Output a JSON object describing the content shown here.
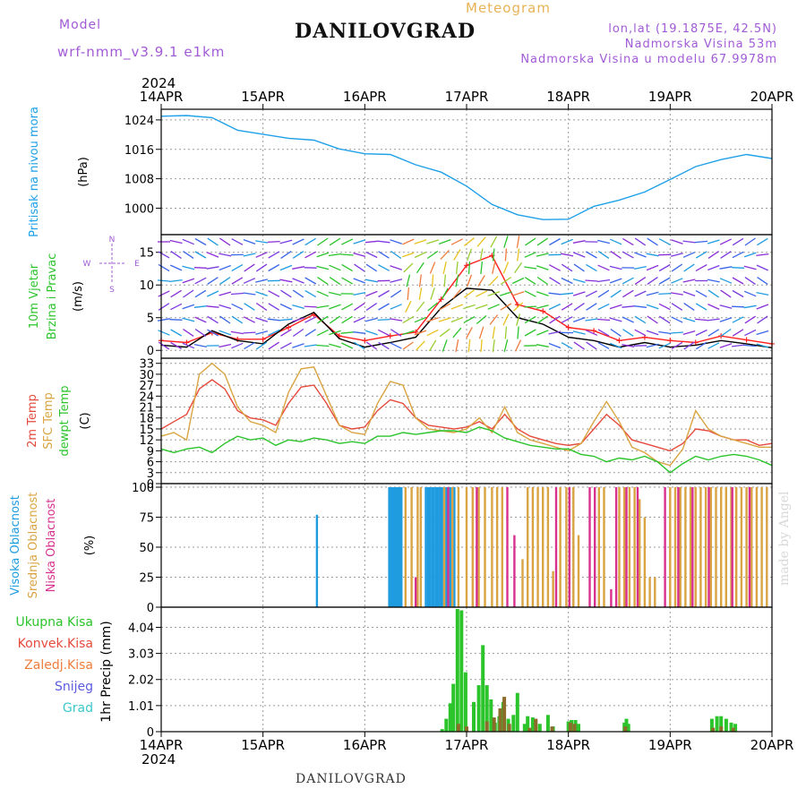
{
  "header": {
    "model_label": "Model",
    "model_name": "wrf-nmm_v3.9.1 e1km",
    "meteogram_label": "Meteogram",
    "station": "DANILOVGRAD",
    "lonlat": "lon,lat (19.1875E, 42.5N)",
    "elevation": "Nadmorska Visina 53m",
    "model_elevation": "Nadmorska Visina u modelu 67.9978m"
  },
  "footer": {
    "station": "DANILOVGRAD",
    "credit": "made by Angel"
  },
  "chart_data": [
    {
      "type": "line",
      "panel": "pressure",
      "ylabel_colored": "Pritisak na nivou mora",
      "ylabel_unit": "(hPa)",
      "yticks": [
        1000,
        1008,
        1016,
        1024
      ],
      "ylim": [
        992.8,
        1026.9
      ],
      "x_top_year": "2024",
      "x_bottom_year": "2024",
      "xticks": [
        "14APR",
        "15APR",
        "16APR",
        "17APR",
        "18APR",
        "19APR",
        "20APR"
      ],
      "x": [
        0,
        0.25,
        0.5,
        0.75,
        1,
        1.25,
        1.5,
        1.75,
        2,
        2.25,
        2.5,
        2.75,
        3,
        3.25,
        3.5,
        3.75,
        4,
        4.25,
        4.5,
        4.75,
        5,
        5.25,
        5.5,
        5.75,
        6
      ],
      "series": [
        {
          "color": "#1fa0e8",
          "values": [
            1025,
            1025.2,
            1024.6,
            1021.2,
            1020.1,
            1019.0,
            1018.5,
            1016.1,
            1014.8,
            1014.6,
            1011.8,
            1009.8,
            1006.0,
            1001.0,
            998.2,
            996.9,
            997.0,
            1000.5,
            1002.2,
            1004.4,
            1007.8,
            1011.3,
            1013.2,
            1014.6,
            1013.5
          ]
        }
      ]
    },
    {
      "type": "line",
      "panel": "wind",
      "ylabel_colored": "10m Vjetar",
      "ylabel_colored2": "Brzina i Pravac",
      "ylabel_unit": "(m/s)",
      "compass": "N, S, W, E",
      "yticks": [
        0,
        5,
        10,
        15
      ],
      "ylim": [
        -1.2,
        17.7
      ],
      "x": [
        0,
        0.25,
        0.5,
        0.75,
        1,
        1.25,
        1.5,
        1.75,
        2,
        2.25,
        2.5,
        2.75,
        3,
        3.25,
        3.5,
        3.75,
        4,
        4.25,
        4.5,
        4.75,
        5,
        5.25,
        5.5,
        5.75,
        6
      ],
      "series": [
        {
          "color": "#ff2020",
          "values": [
            1.5,
            1.2,
            2.7,
            1.7,
            1.7,
            3.5,
            5.5,
            2.2,
            1.5,
            2.2,
            2.8,
            7.8,
            13.0,
            14.5,
            7.0,
            6.0,
            3.5,
            3.0,
            1.5,
            2.0,
            1.5,
            1.2,
            2.2,
            1.6,
            1.0
          ]
        },
        {
          "color": "#000000",
          "values": [
            0.8,
            0.5,
            3.0,
            1.5,
            1.0,
            4.0,
            5.8,
            1.8,
            0.5,
            1.2,
            2.0,
            6.5,
            9.5,
            9.2,
            5.0,
            4.0,
            2.0,
            1.5,
            0.5,
            1.2,
            0.5,
            0.8,
            1.5,
            1.0,
            0.4
          ]
        }
      ]
    },
    {
      "type": "line",
      "panel": "temperature",
      "ylabel_colored": [
        "2m Temp",
        "SFC Temp",
        "dewpt Temp"
      ],
      "ylabel_unit": "(C)",
      "yticks": [
        0,
        3,
        6,
        9,
        12,
        15,
        18,
        21,
        24,
        27,
        30,
        33
      ],
      "ylim": [
        0,
        34.4
      ],
      "x": [
        0,
        0.125,
        0.25,
        0.375,
        0.5,
        0.625,
        0.75,
        0.875,
        1,
        1.125,
        1.25,
        1.375,
        1.5,
        1.625,
        1.75,
        1.875,
        2,
        2.125,
        2.25,
        2.375,
        2.5,
        2.625,
        2.75,
        2.875,
        3,
        3.125,
        3.25,
        3.375,
        3.5,
        3.625,
        3.75,
        3.875,
        4,
        4.125,
        4.25,
        4.375,
        4.5,
        4.625,
        4.75,
        4.875,
        5,
        5.125,
        5.25,
        5.375,
        5.5,
        5.625,
        5.75,
        5.875,
        6
      ],
      "series": [
        {
          "name": "2m Temp",
          "color": "#e54a3c",
          "values": [
            15,
            17,
            19,
            26,
            28.5,
            26,
            20,
            18,
            17.5,
            16,
            22,
            26.5,
            27,
            22,
            16,
            15,
            15.5,
            20,
            23,
            22,
            18,
            16,
            15.5,
            15,
            15.5,
            17,
            15,
            19,
            15,
            13,
            12,
            11,
            10.5,
            11,
            15,
            19,
            16,
            12,
            11,
            10,
            9,
            11,
            15,
            14.5,
            13,
            12,
            12,
            10.5,
            11
          ]
        },
        {
          "name": "SFC Temp",
          "color": "#d9a441",
          "values": [
            13,
            14,
            12,
            30,
            33,
            30,
            21,
            17,
            16,
            14,
            25,
            31.5,
            32,
            24,
            16,
            14,
            13.5,
            22,
            28,
            27,
            18,
            15,
            14.5,
            14,
            15,
            18,
            14,
            21,
            14,
            12,
            11,
            10,
            9,
            11,
            17,
            22.5,
            17,
            10,
            8.5,
            6,
            5,
            9.5,
            20,
            15,
            13,
            12,
            11,
            10,
            10
          ]
        },
        {
          "name": "dewpt Temp",
          "color": "#2bc42b",
          "values": [
            9.5,
            8.5,
            9.5,
            10,
            8.5,
            11,
            13,
            12,
            12.5,
            10.5,
            12,
            11.5,
            12.5,
            12,
            11,
            11.5,
            11,
            13,
            13,
            14,
            13.5,
            14,
            14.5,
            14.5,
            14,
            15.5,
            14.5,
            12.5,
            11.5,
            10.5,
            10,
            9.5,
            9.5,
            8,
            7.5,
            6,
            7,
            6.5,
            7.5,
            6,
            3,
            5.5,
            7.5,
            6.5,
            7.5,
            8,
            7.5,
            6.5,
            5
          ]
        }
      ]
    },
    {
      "type": "bar",
      "panel": "cloud",
      "ylabel_colored": [
        "Visoka Oblacnost",
        "Srednja Oblacnost",
        "Niska Oblacnost"
      ],
      "ylabel_unit": "(%)",
      "yticks": [
        0,
        25,
        50,
        75,
        100
      ],
      "ylim": [
        0,
        103
      ],
      "series": [
        {
          "name": "Visoka Oblacnost",
          "color": "#1f9ce0",
          "x": [
            1.53,
            2.24,
            2.25,
            2.26,
            2.28,
            2.29,
            2.3,
            2.32,
            2.33,
            2.35,
            2.36,
            2.6,
            2.62,
            2.64,
            2.66,
            2.68,
            2.7,
            2.72,
            2.74,
            2.76,
            2.8,
            2.84,
            2.88
          ],
          "values": [
            77,
            100,
            100,
            100,
            100,
            100,
            100,
            100,
            100,
            100,
            100,
            100,
            100,
            100,
            100,
            100,
            100,
            100,
            100,
            100,
            100,
            100,
            100
          ]
        },
        {
          "name": "Srednja Oblacnost",
          "color": "#d9a441",
          "x": [
            2.4,
            2.46,
            2.52,
            2.55,
            2.78,
            2.86,
            2.92,
            3.0,
            3.06,
            3.12,
            3.18,
            3.25,
            3.3,
            3.35,
            3.55,
            3.6,
            3.65,
            3.7,
            3.75,
            3.8,
            3.85,
            3.92,
            3.98,
            4.05,
            4.1,
            4.3,
            4.35,
            4.5,
            4.55,
            4.6,
            4.65,
            4.7,
            4.75,
            4.8,
            4.85,
            5.0,
            5.05,
            5.1,
            5.15,
            5.2,
            5.25,
            5.3,
            5.35,
            5.4,
            5.45,
            5.5,
            5.55,
            5.6,
            5.65,
            5.7,
            5.75,
            5.8,
            5.85,
            5.9,
            5.95
          ],
          "values": [
            100,
            100,
            100,
            100,
            100,
            100,
            100,
            100,
            100,
            100,
            100,
            100,
            100,
            100,
            40,
            100,
            100,
            100,
            100,
            100,
            30,
            100,
            100,
            100,
            60,
            100,
            100,
            100,
            100,
            100,
            100,
            90,
            75,
            25,
            25,
            100,
            100,
            100,
            100,
            100,
            100,
            100,
            100,
            100,
            100,
            100,
            100,
            100,
            100,
            100,
            100,
            100,
            100,
            100,
            100
          ]
        },
        {
          "name": "Niska Oblacnost",
          "color": "#d8308f",
          "x": [
            2.5,
            2.82,
            3.1,
            3.4,
            3.47,
            3.88,
            4.01,
            4.21,
            4.26,
            4.42,
            4.47,
            4.57,
            4.68,
            4.95,
            5.08,
            5.22,
            5.38,
            5.61,
            5.78
          ],
          "values": [
            25,
            100,
            100,
            100,
            60,
            100,
            100,
            100,
            100,
            15,
            100,
            100,
            100,
            100,
            100,
            100,
            100,
            100,
            100
          ]
        }
      ]
    },
    {
      "type": "bar",
      "panel": "precip",
      "ylabel_colored": [
        "Ukupna Kisa",
        "Konvek.Kisa",
        "Zaledj.Kisa",
        "Snijeg",
        "Grad"
      ],
      "legend_colors": [
        "#2bc42b",
        "#e54a3c",
        "#f07c3c",
        "#5b5be0",
        "#3cc8c8"
      ],
      "ylabel_unit": "1hr Precip (mm)",
      "yticks": [
        "0",
        "1.01",
        "2.02",
        "3.03",
        "4.04"
      ],
      "yticks_values": [
        0,
        1.01,
        2.02,
        3.03,
        4.04
      ],
      "ylim": [
        0,
        4.82
      ],
      "series": [
        {
          "name": "Ukupna Kisa",
          "color": "#2bc42b",
          "x": [
            2.76,
            2.8,
            2.84,
            2.87,
            2.91,
            2.95,
            2.99,
            3.07,
            3.12,
            3.16,
            3.2,
            3.24,
            3.28,
            3.32,
            3.36,
            3.41,
            3.46,
            3.5,
            3.57,
            3.6,
            3.65,
            3.68,
            3.72,
            3.8,
            3.85,
            4.0,
            4.03,
            4.07,
            4.1,
            4.55,
            4.57,
            4.59,
            5.41,
            5.46,
            5.5,
            5.55,
            5.6,
            5.64
          ],
          "values": [
            0.1,
            0.5,
            1.1,
            1.85,
            4.75,
            4.7,
            2.3,
            1.15,
            1.8,
            3.35,
            1.8,
            1.25,
            0.35,
            0.6,
            1.15,
            0.5,
            0.65,
            1.5,
            0.3,
            0.6,
            0.55,
            0.3,
            0.3,
            0.65,
            0.2,
            0.4,
            0.45,
            0.45,
            0.3,
            0.35,
            0.5,
            0.3,
            0.5,
            0.6,
            0.6,
            0.5,
            0.35,
            0.3
          ]
        },
        {
          "name": "Konvek.Kisa",
          "color": "#8d6b2b",
          "x": [
            2.92,
            3.0,
            3.2,
            3.27,
            3.33,
            3.37,
            3.42,
            3.62,
            3.68,
            3.84,
            4.02,
            4.06,
            4.56,
            5.42,
            5.5,
            5.62
          ],
          "values": [
            0.3,
            0.2,
            0.4,
            0.55,
            0.9,
            1.35,
            0.3,
            0.15,
            0.5,
            0.2,
            0.35,
            0.3,
            0.2,
            0.15,
            0.2,
            0.15
          ]
        }
      ]
    }
  ]
}
